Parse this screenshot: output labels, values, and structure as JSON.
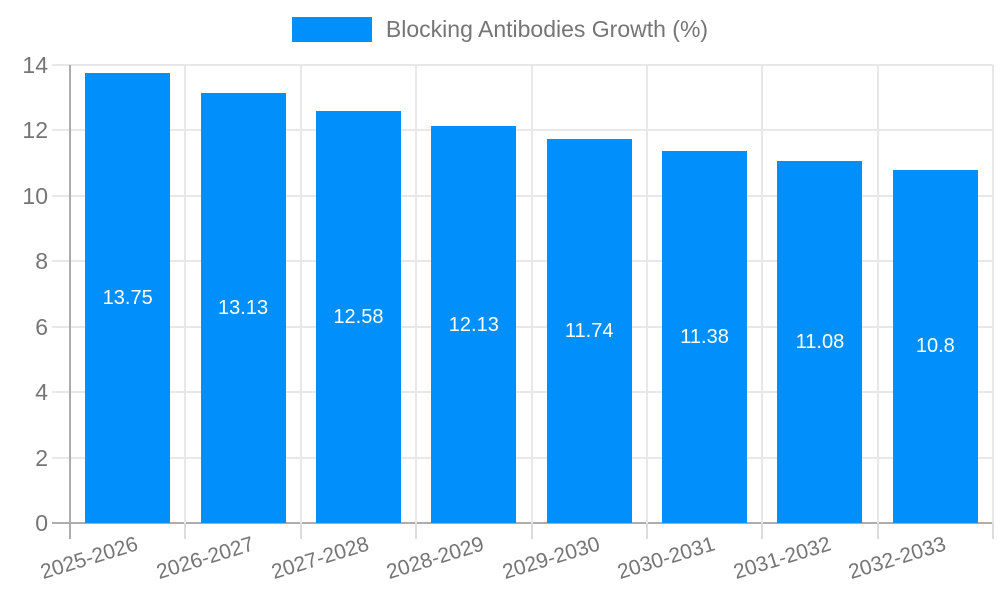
{
  "legend": {
    "label": "Blocking Antibodies Growth (%)"
  },
  "colors": {
    "bar": "#008FFB",
    "bar_label": "#FFFFFF",
    "axis_text": "#757575",
    "grid": "#E8E8E8",
    "axis_line": "#ADADAD",
    "tick": "#DCDCDC",
    "background": "#FFFFFF"
  },
  "chart_data": {
    "type": "bar",
    "title": "",
    "xlabel": "",
    "ylabel": "",
    "categories": [
      "2025-2026",
      "2026-2027",
      "2027-2028",
      "2028-2029",
      "2029-2030",
      "2030-2031",
      "2031-2032",
      "2032-2033"
    ],
    "values": [
      13.75,
      13.13,
      12.58,
      12.13,
      11.74,
      11.38,
      11.08,
      10.8
    ],
    "series_name": "Blocking Antibodies Growth (%)",
    "ylim": [
      0,
      14
    ],
    "yticks": [
      0,
      2,
      4,
      6,
      8,
      10,
      12,
      14
    ],
    "grid": true,
    "legend_position": "top-center",
    "value_label_style": "white, centered inside bar",
    "x_label_rotation_deg": -17
  }
}
